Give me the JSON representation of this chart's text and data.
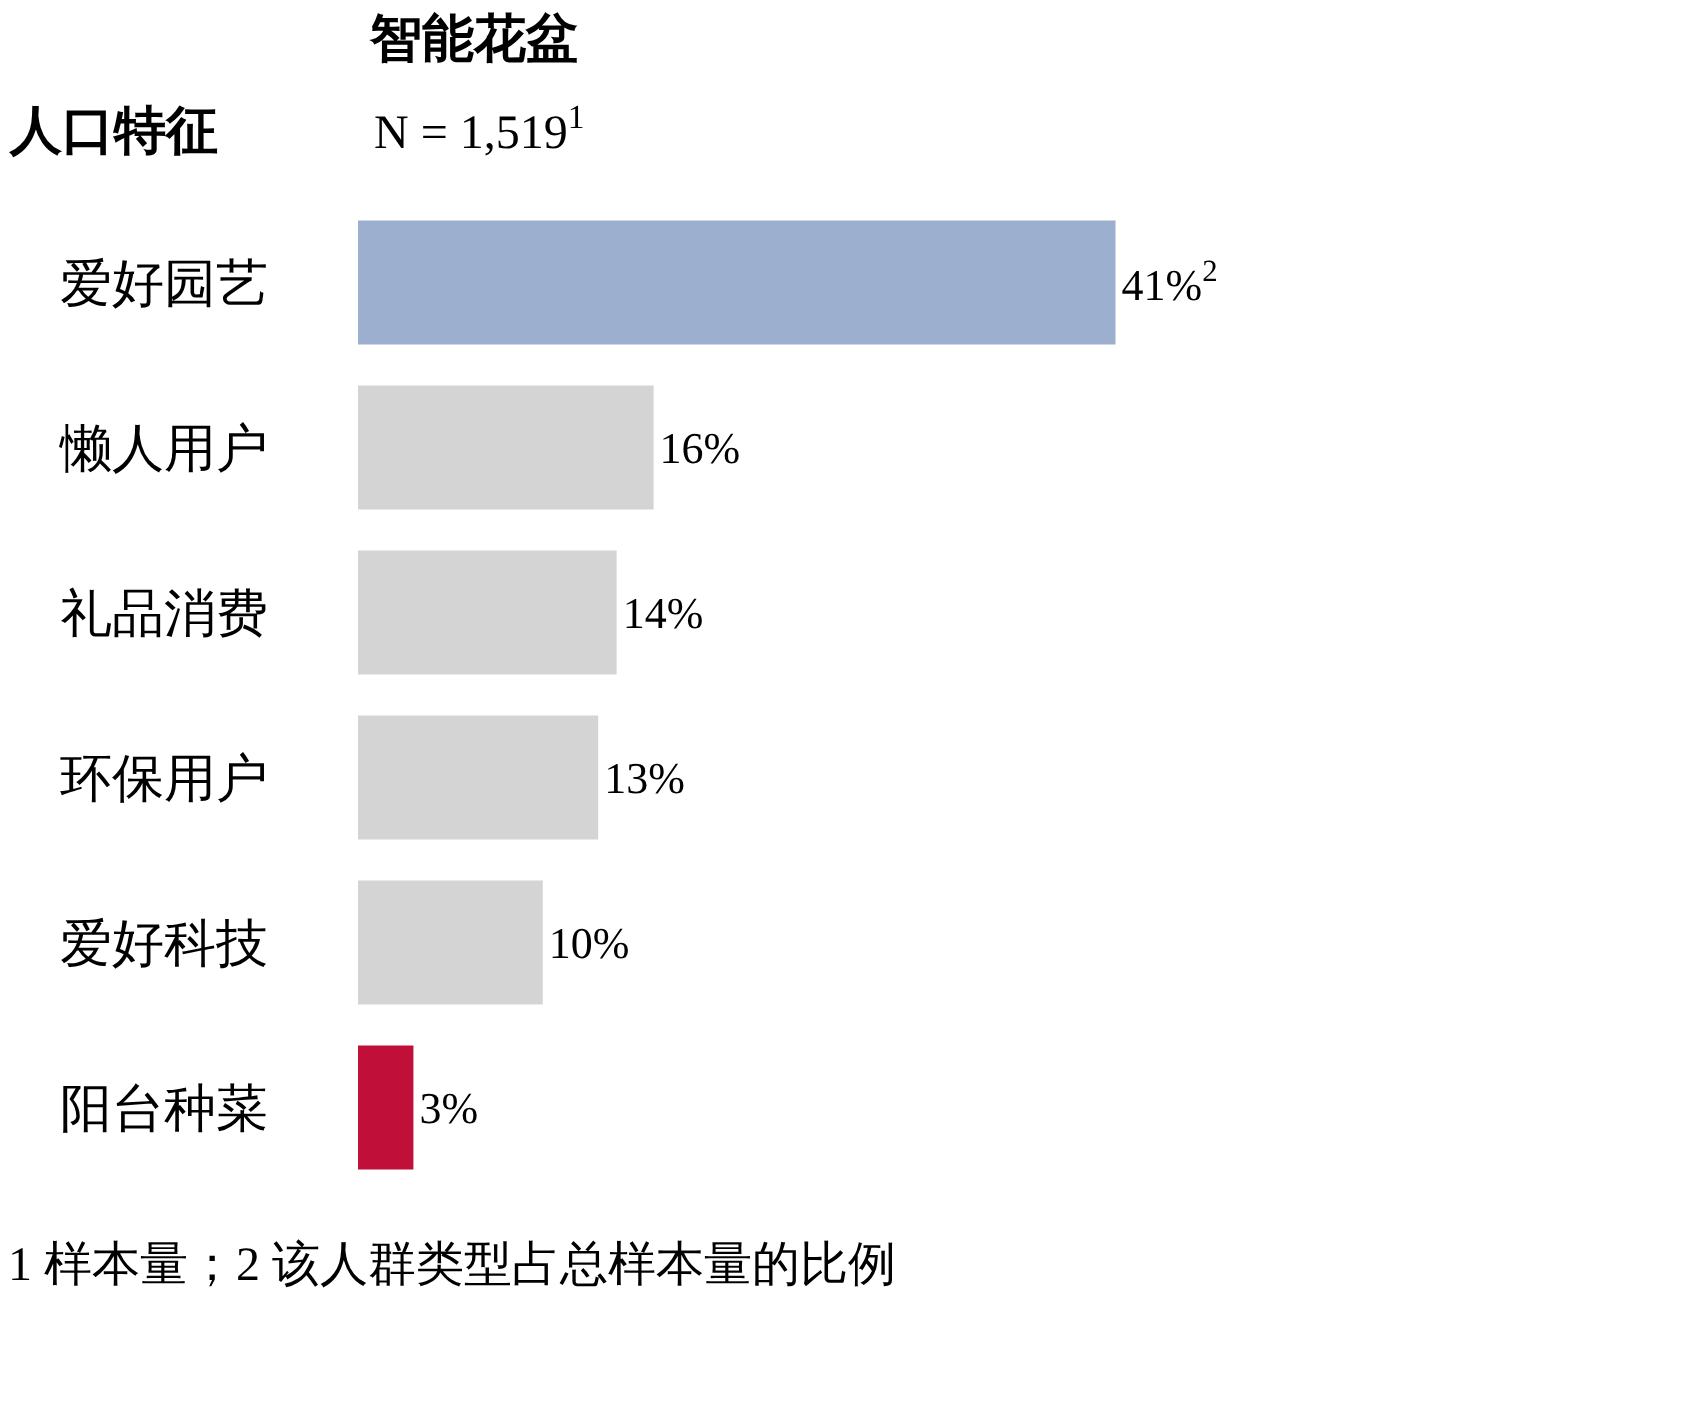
{
  "chart_data": {
    "type": "bar",
    "orientation": "horizontal",
    "title": "智能花盆",
    "subtitle": "N = 1,519$^{1}$",
    "ylabel": "人口特征",
    "categories": [
      "爱好园艺",
      "懒人用户",
      "礼品消费",
      "环保用户",
      "爱好科技",
      "阳台种菜"
    ],
    "values": [
      41,
      16,
      14,
      13,
      10,
      3
    ],
    "value_labels": [
      "41%$^{2}$",
      "16%",
      "14%",
      "13%",
      "10%",
      "3%"
    ],
    "colors": [
      "#9dafcf",
      "#d4d4d4",
      "#d4d4d4",
      "#d4d4d4",
      "#d4d4d4",
      "#c0103a"
    ],
    "annotations": [
      "1 样本量；2 该人群类型占总样本量的比例"
    ]
  }
}
